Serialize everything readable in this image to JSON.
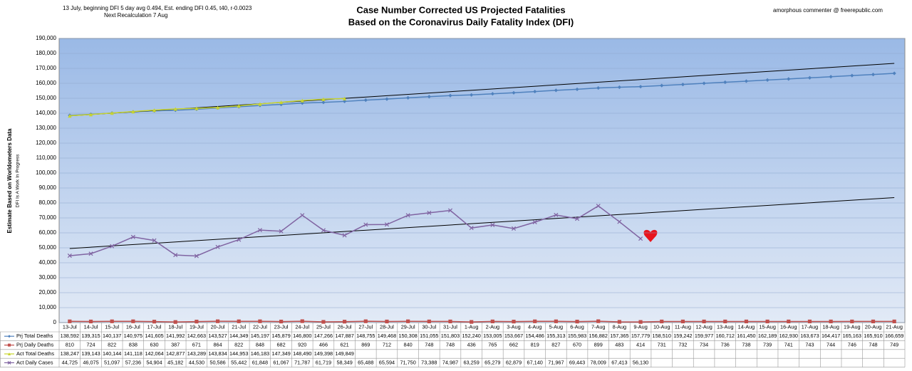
{
  "chart_data": {
    "type": "line",
    "title": "Case Number Corrected US Projected Fatalities",
    "subtitle": "Based on the Coronavirus Daily Fatality Index (DFI)",
    "note_left": "13 July, beginning DFI  5 day avg 0.494, Est. ending DFI  0.45,  t40, r-0.0023",
    "note_left_2": "Next Recalculation 7 Aug",
    "note_right": "amorphous commenter  @  freerepublic.com",
    "ylabel": "Estimate Based on Worldometers  Data",
    "ylabel_2": "DFI Is A Work In Progress",
    "ylim": [
      0,
      190000
    ],
    "yticks": [
      {
        "value": 0,
        "label": "0"
      },
      {
        "value": 10000,
        "label": "10,000"
      },
      {
        "value": 20000,
        "label": "20,000"
      },
      {
        "value": 30000,
        "label": "30,000"
      },
      {
        "value": 40000,
        "label": "40,000"
      },
      {
        "value": 50000,
        "label": "50,000"
      },
      {
        "value": 60000,
        "label": "60,000"
      },
      {
        "value": 70000,
        "label": "70,000"
      },
      {
        "value": 80000,
        "label": "80,000"
      },
      {
        "value": 90000,
        "label": "90,000"
      },
      {
        "value": 100000,
        "label": "100,000"
      },
      {
        "value": 110000,
        "label": "110,000"
      },
      {
        "value": 120000,
        "label": "120,000"
      },
      {
        "value": 130000,
        "label": "130,000"
      },
      {
        "value": 140000,
        "label": "140,000"
      },
      {
        "value": 150000,
        "label": "150,000"
      },
      {
        "value": 160000,
        "label": "160,000"
      },
      {
        "value": 170000,
        "label": "170,000"
      },
      {
        "value": 180000,
        "label": "180,000"
      },
      {
        "value": 190000,
        "label": "190,000"
      }
    ],
    "grid": true,
    "categories": [
      "13-Jul",
      "14-Jul",
      "15-Jul",
      "16-Jul",
      "17-Jul",
      "18-Jul",
      "19-Jul",
      "20-Jul",
      "21-Jul",
      "22-Jul",
      "23-Jul",
      "24-Jul",
      "25-Jul",
      "26-Jul",
      "27-Jul",
      "28-Jul",
      "29-Jul",
      "30-Jul",
      "31-Jul",
      "1-Aug",
      "2-Aug",
      "3-Aug",
      "4-Aug",
      "5-Aug",
      "6-Aug",
      "7-Aug",
      "8-Aug",
      "9-Aug",
      "10-Aug",
      "11-Aug",
      "12-Aug",
      "13-Aug",
      "14-Aug",
      "15-Aug",
      "16-Aug",
      "17-Aug",
      "18-Aug",
      "19-Aug",
      "20-Aug",
      "21-Aug"
    ],
    "series": [
      {
        "name": "Prj Total Deaths",
        "color": "#4f81bd",
        "marker": "diamond",
        "values": [
          138592,
          139315,
          140137,
          140975,
          141605,
          141992,
          142663,
          143527,
          144349,
          145197,
          145879,
          146800,
          147266,
          147887,
          148755,
          149468,
          150308,
          151055,
          151803,
          152240,
          153005,
          153667,
          154486,
          155313,
          155983,
          156882,
          157365,
          157779,
          158510,
          159242,
          159977,
          160712,
          161450,
          162189,
          162930,
          163673,
          164417,
          165163,
          165910,
          166659
        ],
        "value_labels": [
          "138,592",
          "139,315",
          "140,137",
          "140,975",
          "141,605",
          "141,992",
          "142,663",
          "143,527",
          "144,349",
          "145,197",
          "145,879",
          "146,800",
          "147,266",
          "147,887",
          "148,755",
          "149,468",
          "150,308",
          "151,055",
          "151,803",
          "152,240",
          "153,005",
          "153,667",
          "154,486",
          "155,313",
          "155,983",
          "156,882",
          "157,365",
          "157,779",
          "158,510",
          "159,242",
          "159,977",
          "160,712",
          "161,450",
          "162,189",
          "162,930",
          "163,673",
          "164,417",
          "165,163",
          "165,910",
          "166,659"
        ]
      },
      {
        "name": "Prj Daily Deaths",
        "color": "#c0504d",
        "marker": "square",
        "values": [
          810,
          724,
          822,
          838,
          630,
          387,
          671,
          864,
          822,
          848,
          682,
          920,
          466,
          621,
          869,
          712,
          840,
          748,
          748,
          436,
          765,
          662,
          819,
          827,
          670,
          899,
          483,
          414,
          731,
          732,
          734,
          736,
          738,
          739,
          741,
          743,
          744,
          746,
          748,
          749
        ]
      },
      {
        "name": "Act Total Deaths",
        "color": "#c8d430",
        "marker": "triangle",
        "trendline": true,
        "values": [
          138247,
          139143,
          140144,
          141118,
          142064,
          142877,
          143289,
          143834,
          144953,
          146183,
          147349,
          148490,
          149398,
          149849,
          null,
          null,
          null,
          null,
          null,
          null,
          null,
          null,
          null,
          null,
          null,
          null,
          null,
          null,
          null,
          null,
          null,
          null,
          null,
          null,
          null,
          null,
          null,
          null,
          null,
          null
        ],
        "value_labels": [
          "138,247",
          "139,143",
          "140,144",
          "141,118",
          "142,064",
          "142,877",
          "143,289",
          "143,834",
          "144,953",
          "146,183",
          "147,349",
          "148,490",
          "149,398",
          "149,849",
          null,
          null,
          null,
          null,
          null,
          null,
          null,
          null,
          null,
          null,
          null,
          null,
          null,
          null,
          null,
          null,
          null,
          null,
          null,
          null,
          null,
          null,
          null,
          null,
          null,
          null
        ]
      },
      {
        "name": "Act Daily Cases",
        "color": "#8064a2",
        "marker": "x",
        "trendline": true,
        "values": [
          44725,
          46075,
          51097,
          57236,
          54904,
          45182,
          44530,
          50586,
          55442,
          61848,
          61067,
          71787,
          61719,
          58349,
          65488,
          65594,
          71750,
          73388,
          74987,
          63259,
          65279,
          62879,
          67140,
          71967,
          69443,
          78009,
          67413,
          56130,
          null,
          null,
          null,
          null,
          null,
          null,
          null,
          null,
          null,
          null,
          null,
          null
        ],
        "value_labels": [
          "44,725",
          "46,075",
          "51,097",
          "57,236",
          "54,904",
          "45,182",
          "44,530",
          "50,586",
          "55,442",
          "61,848",
          "61,067",
          "71,787",
          "61,719",
          "58,349",
          "65,488",
          "65,594",
          "71,750",
          "73,388",
          "74,987",
          "63,259",
          "65,279",
          "62,879",
          "67,140",
          "71,967",
          "69,443",
          "78,009",
          "67,413",
          "56,130",
          null,
          null,
          null,
          null,
          null,
          null,
          null,
          null,
          null,
          null,
          null,
          null
        ]
      }
    ]
  }
}
